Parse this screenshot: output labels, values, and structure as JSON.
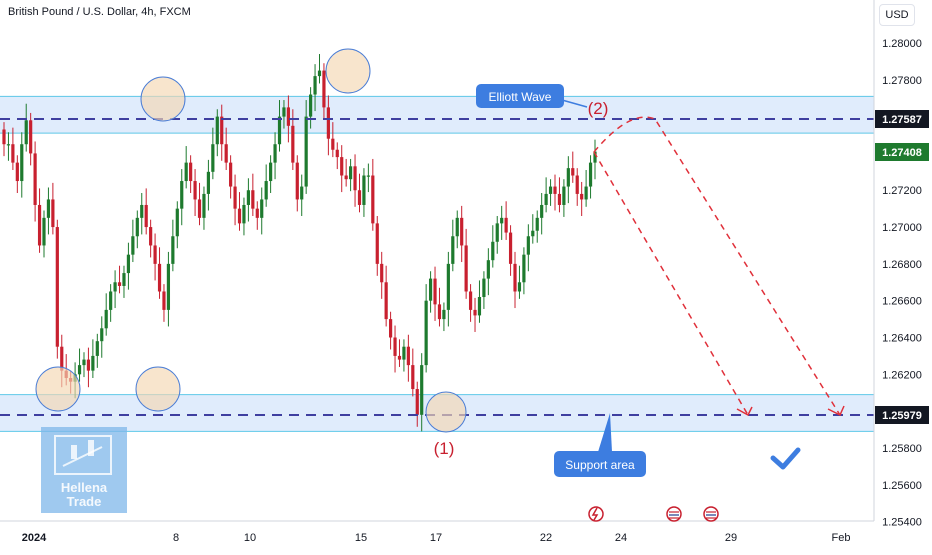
{
  "header": {
    "symbol_title": "British Pound / U.S. Dollar, 4h, FXCM",
    "currency": "USD"
  },
  "colors": {
    "up": "#1e7a2e",
    "down": "#c8202f",
    "zone_fill": "#dbe9fb",
    "zone_line": "#5ec8e8",
    "level_line": "#3f3fa0",
    "annotation_bg": "#3d7de0",
    "forecast": "#e0303a",
    "marker_fill": "#f4d7b2",
    "marker_stroke": "#4a7dd6",
    "price_tag_current": "#1e7a2e",
    "price_tag_level": "#131722"
  },
  "chart_data": {
    "type": "candlestick",
    "title": "British Pound / U.S. Dollar, 4h, FXCM",
    "x_tick_labels": [
      "2024",
      "8",
      "10",
      "15",
      "17",
      "22",
      "24",
      "29",
      "Feb"
    ],
    "y_ticks": [
      1.254,
      1.256,
      1.258,
      1.262,
      1.264,
      1.266,
      1.268,
      1.27,
      1.272,
      1.278,
      1.28
    ],
    "y_tick_labels": [
      "1.25400",
      "1.25600",
      "1.25800",
      "1.26200",
      "1.26400",
      "1.26600",
      "1.26800",
      "1.27000",
      "1.27200",
      "1.27800",
      "1.28000"
    ],
    "ylim": [
      1.2535,
      1.2815
    ],
    "last_price": 1.27408,
    "last_price_label": "1.27408",
    "resistance_level": 1.27587,
    "resistance_label": "1.27587",
    "support_level": 1.25979,
    "support_label": "1.25979",
    "resistance_zone": [
      1.2751,
      1.2771
    ],
    "support_zone": [
      1.2589,
      1.2609
    ],
    "close_series": [
      1.2745,
      1.2745,
      1.2735,
      1.2725,
      1.2745,
      1.2758,
      1.274,
      1.2712,
      1.269,
      1.2705,
      1.2715,
      1.27,
      1.2635,
      1.2622,
      1.2618,
      1.2616,
      1.262,
      1.2625,
      1.2628,
      1.2622,
      1.263,
      1.2638,
      1.2645,
      1.2655,
      1.2665,
      1.267,
      1.2668,
      1.2675,
      1.2685,
      1.2695,
      1.2705,
      1.2712,
      1.27,
      1.269,
      1.268,
      1.2665,
      1.2655,
      1.268,
      1.2695,
      1.271,
      1.2725,
      1.2735,
      1.2725,
      1.2715,
      1.2705,
      1.2718,
      1.273,
      1.2745,
      1.276,
      1.2745,
      1.2735,
      1.2722,
      1.271,
      1.2702,
      1.2712,
      1.272,
      1.271,
      1.2705,
      1.2715,
      1.2725,
      1.2735,
      1.2745,
      1.276,
      1.2765,
      1.2755,
      1.2735,
      1.2715,
      1.2722,
      1.276,
      1.2772,
      1.2782,
      1.2785,
      1.2765,
      1.2748,
      1.2742,
      1.2738,
      1.2728,
      1.2726,
      1.2733,
      1.272,
      1.2712,
      1.2728,
      1.2728,
      1.2702,
      1.268,
      1.267,
      1.265,
      1.264,
      1.263,
      1.2628,
      1.2635,
      1.2625,
      1.2612,
      1.2598,
      1.2625,
      1.266,
      1.2672,
      1.2658,
      1.265,
      1.2655,
      1.268,
      1.2695,
      1.2705,
      1.269,
      1.2665,
      1.2655,
      1.2652,
      1.2662,
      1.2672,
      1.2682,
      1.2692,
      1.2702,
      1.2705,
      1.2697,
      1.268,
      1.2665,
      1.267,
      1.2685,
      1.2695,
      1.2698,
      1.2705,
      1.2712,
      1.2718,
      1.2722,
      1.2718,
      1.2712,
      1.2722,
      1.2732,
      1.2728,
      1.2718,
      1.2715,
      1.2722,
      1.2735,
      1.2741
    ],
    "elliott_wave_points": [
      {
        "label": "(1)",
        "price": 1.25979
      },
      {
        "label": "(2)",
        "price": 1.27587
      }
    ],
    "forecast_paths": [
      [
        1.2741,
        1.27587,
        1.25979
      ],
      [
        1.2741,
        1.25979
      ]
    ],
    "grid": false
  },
  "annotations": {
    "elliott_wave": "Elliott Wave",
    "support_area": "Support area"
  },
  "watermark": {
    "line1": "Hellena",
    "line2": "Trade"
  },
  "event_icons": [
    "lightning-event-icon",
    "us-flag-event-icon",
    "us-flag-event-icon"
  ]
}
